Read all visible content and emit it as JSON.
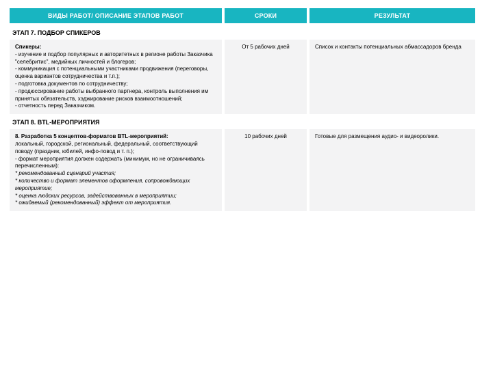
{
  "header": {
    "work": "ВИДЫ РАБОТ/ ОПИСАНИЕ ЭТАПОВ РАБОТ",
    "time": "СРОКИ",
    "result": "РЕЗУЛЬТАТ"
  },
  "stage7": {
    "title": "ЭТАП 7. ПОДБОР СПИКЕРОВ",
    "work_heading": "Спикеры:",
    "work_l1": "- изучение и подбор популярных и авторитетных в регионе работы Заказчика \"селебритис\", медийных личностей и блогеров;",
    "work_l2": "- коммуникация с потенциальными участниками продвижения (переговоры, оценка вариантов сотрудничества и т.п.);",
    "work_l3": "- подготовка документов по сотрудничеству;",
    "work_l4": "- продюссирование работы выбранного партнера, контроль выполнения им принятых обязательств, хэджирование рисков взаимоотношений;",
    "work_l5": "- отчетность перед Заказчиком.",
    "time": "От 5 рабочих дней",
    "result": "Список и контакты потенциальных абмассадоров бренда"
  },
  "stage8": {
    "title": "ЭТАП 8. BTL-МЕРОПРИЯТИЯ",
    "work_heading": "8. Разработка 5 концептов-форматов BTL-мероприятий:",
    "work_l1": "локальный, городской, региональный, федеральный, соответствующий поводу (праздник, юбилей, инфо-повод и т. п.);",
    "work_l2": "- формат мероприятия должен содержать (минимум, но не ограничиваясь перечисленным):",
    "work_i1": "* рекомендованный сценарий участия;",
    "work_i2": "* количество и формат элементов оформления, сопровождающих мероприятие;",
    "work_i3": "* оценка людских ресурсов, задействованных в мероприятии;",
    "work_i4": "* ожидаемый (рекомендованный) эффект от мероприятия.",
    "time": "10 рабочих дней",
    "result": "Готовые для размещения аудио- и видеоролики."
  },
  "colors": {
    "header_bg": "#18b5c1",
    "header_text": "#ffffff",
    "cell_bg": "#f3f3f4",
    "text": "#000000",
    "page_bg": "#ffffff"
  },
  "layout": {
    "col_work_w": 310,
    "col_time_w": 120,
    "col_result_w": 242,
    "gap": 4,
    "font_header": 9,
    "font_body": 8
  }
}
